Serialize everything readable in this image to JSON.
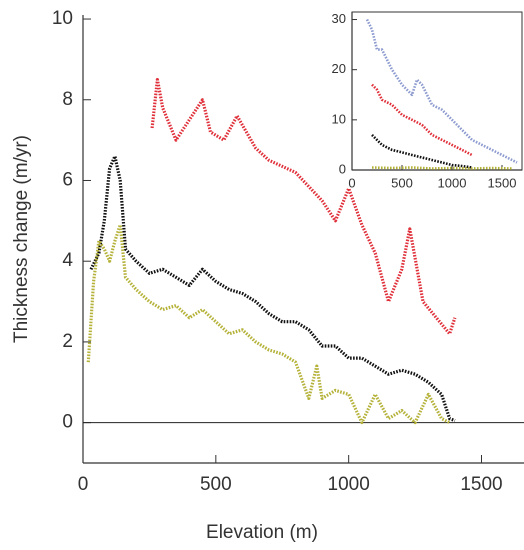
{
  "chart_data": [
    {
      "type": "line",
      "xlabel": "Elevation (m)",
      "ylabel": "Thickness change (m/yr)",
      "xlim": [
        0,
        1660
      ],
      "ylim": [
        -1,
        10.1
      ],
      "xticks": [
        0,
        500,
        1000,
        1500
      ],
      "yticks": [
        0,
        2,
        4,
        6,
        8,
        10
      ],
      "zero_line": true,
      "series": [
        {
          "color": "#e0303a",
          "x": [
            260,
            280,
            300,
            350,
            400,
            450,
            480,
            530,
            580,
            650,
            700,
            800,
            900,
            950,
            1000,
            1050,
            1100,
            1150,
            1200,
            1230,
            1280,
            1330,
            1380,
            1400
          ],
          "values": [
            7.3,
            8.5,
            7.8,
            7.0,
            7.5,
            8.0,
            7.2,
            7.0,
            7.6,
            6.8,
            6.5,
            6.2,
            5.5,
            5.0,
            5.8,
            4.9,
            4.2,
            3.0,
            3.8,
            4.8,
            3.0,
            2.6,
            2.2,
            2.6
          ]
        },
        {
          "color": "#111111",
          "x": [
            30,
            60,
            80,
            100,
            120,
            140,
            160,
            200,
            250,
            300,
            350,
            400,
            450,
            500,
            550,
            600,
            650,
            700,
            750,
            800,
            850,
            900,
            950,
            1000,
            1050,
            1100,
            1150,
            1200,
            1250,
            1300,
            1350,
            1380,
            1400
          ],
          "values": [
            3.8,
            4.2,
            5.0,
            6.3,
            6.6,
            6.0,
            4.3,
            4.0,
            3.7,
            3.8,
            3.6,
            3.4,
            3.8,
            3.5,
            3.3,
            3.2,
            3.0,
            2.7,
            2.5,
            2.5,
            2.3,
            1.9,
            1.9,
            1.6,
            1.6,
            1.4,
            1.2,
            1.3,
            1.2,
            1.0,
            0.7,
            0.1,
            0.05
          ]
        },
        {
          "color": "#b5b23a",
          "x": [
            20,
            40,
            60,
            80,
            100,
            120,
            140,
            160,
            200,
            250,
            300,
            350,
            400,
            450,
            500,
            550,
            600,
            650,
            700,
            750,
            800,
            850,
            880,
            900,
            950,
            1000,
            1050,
            1100,
            1150,
            1200,
            1250,
            1300,
            1350,
            1380
          ],
          "values": [
            1.5,
            3.5,
            4.5,
            4.3,
            4.0,
            4.5,
            4.9,
            3.6,
            3.3,
            3.0,
            2.8,
            2.9,
            2.6,
            2.8,
            2.5,
            2.2,
            2.3,
            2.0,
            1.8,
            1.7,
            1.5,
            0.6,
            1.4,
            0.6,
            0.8,
            0.7,
            0.0,
            0.7,
            0.1,
            0.3,
            0.0,
            0.7,
            0.1,
            0.0
          ]
        }
      ]
    },
    {
      "type": "line",
      "xlim": [
        0,
        1700
      ],
      "ylim": [
        0,
        31.5
      ],
      "xticks": [
        0,
        500,
        1000,
        1500
      ],
      "yticks": [
        0,
        10,
        20,
        30
      ],
      "series": [
        {
          "color": "#8d9bd0",
          "x": [
            150,
            200,
            250,
            300,
            400,
            500,
            600,
            650,
            700,
            800,
            900,
            1000,
            1100,
            1200,
            1300,
            1400,
            1500,
            1600,
            1650
          ],
          "values": [
            30,
            28,
            24,
            24,
            20,
            17,
            15,
            18,
            17,
            13,
            12,
            10,
            8,
            6,
            5,
            4,
            3,
            2,
            1.5
          ]
        },
        {
          "color": "#e0303a",
          "x": [
            200,
            250,
            300,
            400,
            500,
            600,
            700,
            800,
            900,
            1000,
            1100,
            1200
          ],
          "values": [
            17,
            16,
            14,
            13,
            11,
            10,
            9,
            7,
            6,
            5,
            4,
            3
          ]
        },
        {
          "color": "#111111",
          "x": [
            200,
            250,
            300,
            400,
            500,
            600,
            700,
            800,
            900,
            1000,
            1100,
            1200
          ],
          "values": [
            7,
            6,
            5,
            4,
            3.5,
            3,
            2.5,
            2,
            1.5,
            1,
            0.8,
            0.5
          ]
        },
        {
          "color": "#b5b23a",
          "x": [
            200,
            400,
            600,
            800,
            1000,
            1200,
            1400,
            1600
          ],
          "values": [
            0.5,
            0.4,
            0.5,
            0.3,
            0.4,
            0.3,
            0.4,
            0.3
          ]
        }
      ]
    }
  ]
}
